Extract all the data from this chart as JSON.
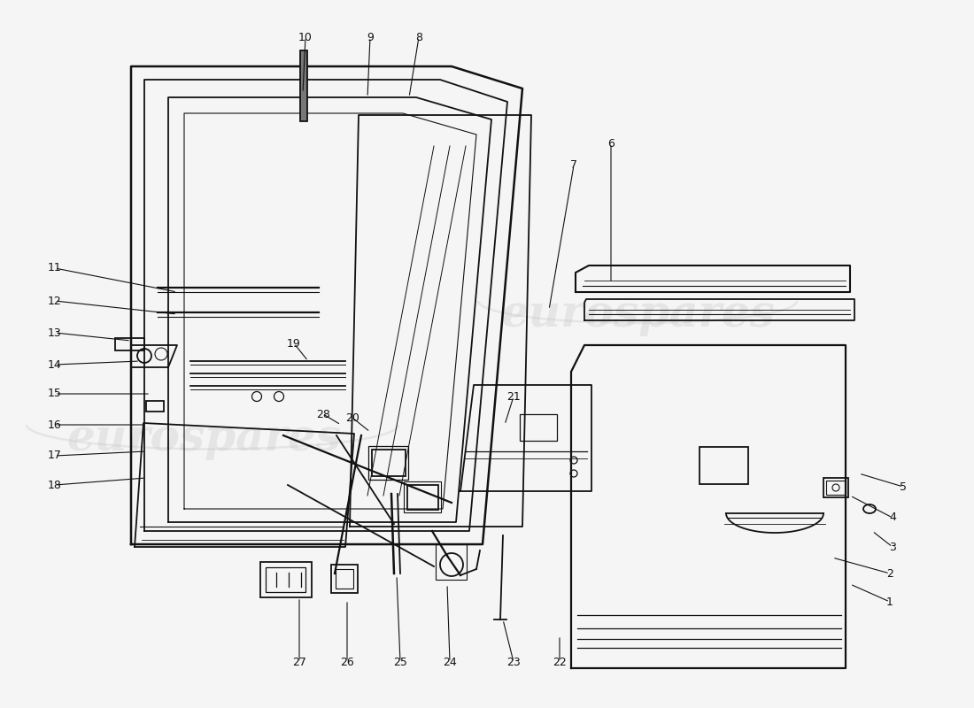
{
  "bg_color": "#f5f5f5",
  "line_color": "#111111",
  "watermark_color": "#cccccc",
  "lw": 1.3,
  "fontsize": 9,
  "labels": [
    [
      "1",
      1005,
      680
    ],
    [
      "2",
      1005,
      648
    ],
    [
      "3",
      1008,
      618
    ],
    [
      "4",
      1008,
      585
    ],
    [
      "5",
      1020,
      550
    ],
    [
      "6",
      690,
      162
    ],
    [
      "7",
      648,
      187
    ],
    [
      "8",
      473,
      42
    ],
    [
      "9",
      418,
      42
    ],
    [
      "10",
      345,
      42
    ],
    [
      "11",
      62,
      303
    ],
    [
      "12",
      62,
      340
    ],
    [
      "13",
      62,
      376
    ],
    [
      "14",
      62,
      412
    ],
    [
      "15",
      62,
      445
    ],
    [
      "16",
      62,
      480
    ],
    [
      "17",
      62,
      515
    ],
    [
      "18",
      62,
      548
    ],
    [
      "19",
      332,
      388
    ],
    [
      "20",
      398,
      472
    ],
    [
      "21",
      580,
      448
    ],
    [
      "22",
      632,
      748
    ],
    [
      "23",
      580,
      748
    ],
    [
      "24",
      508,
      748
    ],
    [
      "25",
      452,
      748
    ],
    [
      "26",
      392,
      748
    ],
    [
      "27",
      338,
      748
    ],
    [
      "28",
      365,
      468
    ]
  ],
  "leader_lines": [
    [
      "1",
      1005,
      680,
      960,
      660
    ],
    [
      "2",
      1005,
      648,
      940,
      630
    ],
    [
      "3",
      1008,
      618,
      985,
      600
    ],
    [
      "4",
      1008,
      585,
      960,
      560
    ],
    [
      "5",
      1020,
      550,
      970,
      535
    ],
    [
      "6",
      690,
      162,
      690,
      320
    ],
    [
      "7",
      648,
      187,
      620,
      350
    ],
    [
      "8",
      473,
      42,
      462,
      110
    ],
    [
      "9",
      418,
      42,
      415,
      110
    ],
    [
      "10",
      345,
      42,
      342,
      105
    ],
    [
      "11",
      62,
      303,
      200,
      330
    ],
    [
      "12",
      62,
      340,
      200,
      355
    ],
    [
      "13",
      62,
      376,
      148,
      385
    ],
    [
      "14",
      62,
      412,
      158,
      408
    ],
    [
      "15",
      62,
      445,
      170,
      445
    ],
    [
      "16",
      62,
      480,
      165,
      480
    ],
    [
      "17",
      62,
      515,
      165,
      510
    ],
    [
      "18",
      62,
      548,
      165,
      540
    ],
    [
      "19",
      332,
      388,
      348,
      408
    ],
    [
      "20",
      398,
      472,
      418,
      488
    ],
    [
      "21",
      580,
      448,
      570,
      480
    ],
    [
      "22",
      632,
      748,
      632,
      718
    ],
    [
      "23",
      580,
      748,
      568,
      700
    ],
    [
      "24",
      508,
      748,
      505,
      660
    ],
    [
      "25",
      452,
      748,
      448,
      650
    ],
    [
      "26",
      392,
      748,
      392,
      678
    ],
    [
      "27",
      338,
      748,
      338,
      675
    ],
    [
      "28",
      365,
      468,
      385,
      480
    ]
  ]
}
